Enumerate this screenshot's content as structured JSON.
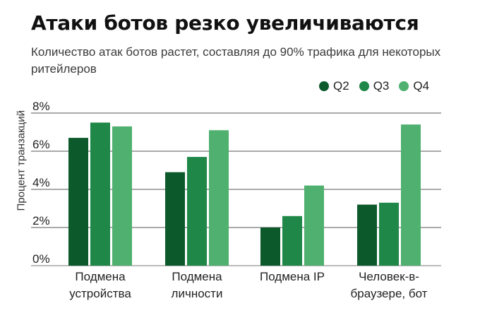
{
  "header": {
    "title": "Атаки ботов резко увеличиваются",
    "subtitle": "Количество атак ботов растет, составляя до 90% трафика для некоторых ритейлеров"
  },
  "colors": {
    "q2": "#0c5a2c",
    "q3": "#1f8747",
    "q4": "#4fb070",
    "grid": "#555555"
  },
  "chart_data": {
    "type": "bar",
    "title": "Атаки ботов резко увеличиваются",
    "subtitle": "Количество атак ботов растет, составляя до 90% трафика для некоторых ритейлеров",
    "ylabel": "Процент транзакций",
    "xlabel": "",
    "ylim": [
      0,
      8
    ],
    "yticks": [
      "0%",
      "2%",
      "4%",
      "6%",
      "8%"
    ],
    "grid": true,
    "legend_position": "top-right",
    "categories": [
      [
        "Подмена",
        "устройства"
      ],
      [
        "Подмена",
        "личности"
      ],
      [
        "Подмена IP"
      ],
      [
        "Человек-в-",
        "браузере, бот"
      ]
    ],
    "series": [
      {
        "name": "Q2",
        "values": [
          6.7,
          4.9,
          2.0,
          3.2
        ]
      },
      {
        "name": "Q3",
        "values": [
          7.5,
          5.7,
          2.6,
          3.3
        ]
      },
      {
        "name": "Q4",
        "values": [
          7.3,
          7.1,
          4.2,
          7.4
        ]
      }
    ]
  }
}
